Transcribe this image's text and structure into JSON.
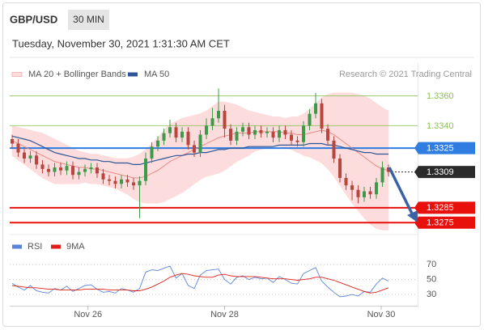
{
  "header": {
    "symbol": "GBP/USD",
    "timeframe": "30 MIN",
    "timestamp": "Tuesday, November 30, 2021 1:31:30 AM CET"
  },
  "chart_data": {
    "type": "candlestick",
    "credit": "Research © 2021 Trading Central",
    "up_color": "#3c9a4a",
    "down_color": "#b8453e",
    "ylim": [
      1.3267,
      1.3382
    ],
    "xticks": [
      {
        "value": 12.5,
        "label": "Nov 26"
      },
      {
        "value": 35,
        "label": "Nov 28"
      },
      {
        "value": 60.8,
        "label": "Nov 30"
      }
    ],
    "open": [
      1.3331,
      1.3328,
      1.3322,
      1.3318,
      1.332,
      1.3314,
      1.3311,
      1.3309,
      1.3312,
      1.331,
      1.3313,
      1.3307,
      1.3309,
      1.3311,
      1.3312,
      1.3308,
      1.3304,
      1.3303,
      1.3301,
      1.3304,
      1.3302,
      1.33,
      1.3303,
      1.3318,
      1.3326,
      1.333,
      1.3335,
      1.3339,
      1.3332,
      1.3336,
      1.3327,
      1.3322,
      1.3334,
      1.334,
      1.3345,
      1.335,
      1.3338,
      1.333,
      1.3336,
      1.3339,
      1.3334,
      1.3337,
      1.3335,
      1.3336,
      1.3332,
      1.3337,
      1.3334,
      1.333,
      1.3329,
      1.334,
      1.3348,
      1.3355,
      1.3338,
      1.333,
      1.3318,
      1.3305,
      1.33,
      1.3297,
      1.3292,
      1.3296,
      1.3294,
      1.3302,
      1.3312
    ],
    "high": [
      1.3334,
      1.3331,
      1.3325,
      1.3323,
      1.3323,
      1.3317,
      1.3314,
      1.3315,
      1.3315,
      1.3316,
      1.3316,
      1.3312,
      1.3314,
      1.3315,
      1.3315,
      1.3311,
      1.3307,
      1.3306,
      1.3307,
      1.3307,
      1.3305,
      1.3306,
      1.3322,
      1.3329,
      1.3333,
      1.3338,
      1.3344,
      1.3342,
      1.3339,
      1.3339,
      1.333,
      1.3337,
      1.3345,
      1.3352,
      1.3365,
      1.3354,
      1.3341,
      1.3339,
      1.3342,
      1.3342,
      1.334,
      1.334,
      1.3339,
      1.3339,
      1.334,
      1.334,
      1.3337,
      1.3333,
      1.3343,
      1.3351,
      1.3362,
      1.3358,
      1.3341,
      1.3333,
      1.3321,
      1.3308,
      1.3303,
      1.33,
      1.3299,
      1.3299,
      1.3305,
      1.3316,
      1.3314
    ],
    "low": [
      1.3325,
      1.3319,
      1.3315,
      1.3315,
      1.3311,
      1.3308,
      1.3306,
      1.3306,
      1.3307,
      1.3307,
      1.3304,
      1.3304,
      1.3306,
      1.3308,
      1.3305,
      1.3301,
      1.33,
      1.3298,
      1.3298,
      1.3299,
      1.3297,
      1.3278,
      1.33,
      1.3315,
      1.3323,
      1.3327,
      1.3332,
      1.3329,
      1.3329,
      1.3324,
      1.3319,
      1.3319,
      1.3331,
      1.3337,
      1.3342,
      1.3332,
      1.3327,
      1.3327,
      1.3333,
      1.3331,
      1.3331,
      1.3332,
      1.3332,
      1.3329,
      1.3329,
      1.3331,
      1.3327,
      1.3326,
      1.3326,
      1.3337,
      1.3345,
      1.3335,
      1.3327,
      1.3315,
      1.3302,
      1.3297,
      1.329,
      1.3288,
      1.3289,
      1.3291,
      1.3291,
      1.3299,
      1.3306
    ],
    "close": [
      1.3328,
      1.3322,
      1.3318,
      1.332,
      1.3314,
      1.3311,
      1.3309,
      1.3312,
      1.331,
      1.3313,
      1.3307,
      1.3309,
      1.3311,
      1.3312,
      1.3308,
      1.3304,
      1.3303,
      1.3301,
      1.3304,
      1.3302,
      1.33,
      1.3303,
      1.3318,
      1.3326,
      1.333,
      1.3335,
      1.3339,
      1.3332,
      1.3336,
      1.3327,
      1.3322,
      1.3334,
      1.334,
      1.3345,
      1.335,
      1.3338,
      1.333,
      1.3336,
      1.3339,
      1.3334,
      1.3337,
      1.3335,
      1.3336,
      1.3332,
      1.3337,
      1.3334,
      1.333,
      1.3329,
      1.334,
      1.3348,
      1.3355,
      1.3338,
      1.333,
      1.3318,
      1.3305,
      1.33,
      1.3297,
      1.3292,
      1.3296,
      1.3294,
      1.3302,
      1.3312,
      1.3309
    ],
    "overlays": [
      {
        "name": "MA 20 + Bollinger Bands",
        "color": "#e8837f",
        "band_color": "#fcdcdc",
        "values": [
          1.333,
          1.3328,
          1.3326,
          1.3324,
          1.3322,
          1.332,
          1.3318,
          1.3316,
          1.3315,
          1.3314,
          1.3313,
          1.3312,
          1.3312,
          1.3311,
          1.3311,
          1.331,
          1.3309,
          1.3308,
          1.3307,
          1.3306,
          1.3305,
          1.3305,
          1.3306,
          1.3308,
          1.331,
          1.3313,
          1.3316,
          1.3318,
          1.332,
          1.3322,
          1.3324,
          1.3326,
          1.3328,
          1.333,
          1.3332,
          1.3333,
          1.3334,
          1.3335,
          1.3335,
          1.3335,
          1.3336,
          1.3336,
          1.3336,
          1.3336,
          1.3336,
          1.3335,
          1.3335,
          1.3334,
          1.3334,
          1.3335,
          1.3336,
          1.3337,
          1.3336,
          1.3334,
          1.3331,
          1.3328,
          1.3325,
          1.3322,
          1.3319,
          1.3316,
          1.3313,
          1.3311,
          1.331
        ],
        "upper": [
          1.334,
          1.3339,
          1.3338,
          1.3337,
          1.3336,
          1.3335,
          1.3333,
          1.3331,
          1.3329,
          1.3327,
          1.3325,
          1.3323,
          1.3322,
          1.3321,
          1.3321,
          1.332,
          1.3319,
          1.3318,
          1.3318,
          1.3318,
          1.3319,
          1.3321,
          1.3324,
          1.3328,
          1.3332,
          1.3337,
          1.3341,
          1.3343,
          1.3345,
          1.3346,
          1.3347,
          1.3348,
          1.335,
          1.3353,
          1.3356,
          1.3356,
          1.3355,
          1.3354,
          1.3352,
          1.335,
          1.3349,
          1.3348,
          1.3347,
          1.3346,
          1.3346,
          1.3345,
          1.3346,
          1.3346,
          1.3348,
          1.3351,
          1.3355,
          1.3359,
          1.3361,
          1.3362,
          1.3362,
          1.3362,
          1.3362,
          1.3361,
          1.336,
          1.3358,
          1.3355,
          1.3352,
          1.335
        ],
        "lower": [
          1.332,
          1.3317,
          1.3314,
          1.3311,
          1.3308,
          1.3305,
          1.3303,
          1.3301,
          1.3301,
          1.3301,
          1.3301,
          1.3301,
          1.3302,
          1.3301,
          1.3301,
          1.33,
          1.3299,
          1.3298,
          1.3296,
          1.3294,
          1.3291,
          1.3289,
          1.3288,
          1.3288,
          1.3288,
          1.3289,
          1.3291,
          1.3293,
          1.3295,
          1.3298,
          1.3301,
          1.3304,
          1.3306,
          1.3307,
          1.3308,
          1.331,
          1.3313,
          1.3316,
          1.3318,
          1.332,
          1.3323,
          1.3324,
          1.3325,
          1.3326,
          1.3326,
          1.3325,
          1.3324,
          1.3322,
          1.332,
          1.3319,
          1.3317,
          1.3315,
          1.3311,
          1.3306,
          1.33,
          1.3294,
          1.3288,
          1.3283,
          1.3278,
          1.3274,
          1.3271,
          1.327,
          1.327
        ]
      },
      {
        "name": "MA 50",
        "color": "#2d5596",
        "values": [
          1.3333,
          1.3332,
          1.3331,
          1.333,
          1.3328,
          1.3326,
          1.3324,
          1.3322,
          1.3321,
          1.332,
          1.3319,
          1.3318,
          1.3318,
          1.3317,
          1.3317,
          1.3316,
          1.3316,
          1.3315,
          1.3315,
          1.3315,
          1.3314,
          1.3314,
          1.3315,
          1.3316,
          1.3317,
          1.3318,
          1.3319,
          1.332,
          1.332,
          1.3321,
          1.3321,
          1.3322,
          1.3322,
          1.3323,
          1.3324,
          1.3324,
          1.3325,
          1.3325,
          1.3325,
          1.3326,
          1.3326,
          1.3326,
          1.3326,
          1.3326,
          1.3327,
          1.3327,
          1.3327,
          1.3327,
          1.3327,
          1.3328,
          1.3328,
          1.3328,
          1.3327,
          1.3327,
          1.3326,
          1.3325,
          1.3324,
          1.3323,
          1.3322,
          1.3322,
          1.3321,
          1.3321,
          1.3321
        ]
      }
    ],
    "levels": [
      {
        "value": 1.336,
        "label": "1.3360",
        "color": "#8cc152",
        "box": false,
        "dashed": false
      },
      {
        "value": 1.334,
        "label": "1.3340",
        "color": "#8cc152",
        "box": false,
        "dashed": false
      },
      {
        "value": 1.3325,
        "label": "1.3325",
        "color": "#2f7de1",
        "box": true,
        "dashed": false
      },
      {
        "value": 1.3309,
        "label": "1.3309",
        "color": "#2b2b2b",
        "box": true,
        "dashed": true
      },
      {
        "value": 1.3285,
        "label": "1.3285",
        "color": "#e8100c",
        "box": true,
        "dashed": false
      },
      {
        "value": 1.3275,
        "label": "1.3275",
        "color": "#e8100c",
        "box": true,
        "dashed": false
      }
    ],
    "rsi": {
      "ylim": [
        15,
        82
      ],
      "yticks": [
        70,
        50,
        30
      ],
      "series": [
        {
          "name": "RSI",
          "color": "#5b84d8",
          "values": [
            45,
            40,
            36,
            42,
            35,
            33,
            32,
            38,
            36,
            41,
            34,
            38,
            42,
            43,
            37,
            33,
            34,
            32,
            38,
            36,
            33,
            38,
            60,
            63,
            62,
            65,
            68,
            52,
            58,
            42,
            38,
            56,
            62,
            63,
            64,
            50,
            44,
            53,
            55,
            50,
            53,
            51,
            52,
            46,
            54,
            50,
            45,
            44,
            58,
            62,
            66,
            48,
            40,
            33,
            27,
            28,
            30,
            28,
            34,
            33,
            44,
            52,
            48
          ]
        },
        {
          "name": "9MA",
          "color": "#e0201c",
          "values": [
            42,
            41,
            40,
            39,
            39,
            38,
            37,
            37,
            36,
            36,
            36,
            36,
            37,
            37,
            37,
            37,
            36,
            36,
            36,
            36,
            35,
            35,
            37,
            40,
            44,
            48,
            53,
            56,
            58,
            57,
            55,
            54,
            53,
            53,
            56,
            57,
            55,
            54,
            54,
            54,
            54,
            53,
            52,
            51,
            51,
            51,
            50,
            49,
            50,
            51,
            53,
            53,
            51,
            49,
            46,
            43,
            40,
            37,
            34,
            32,
            33,
            36,
            39
          ]
        }
      ]
    }
  }
}
